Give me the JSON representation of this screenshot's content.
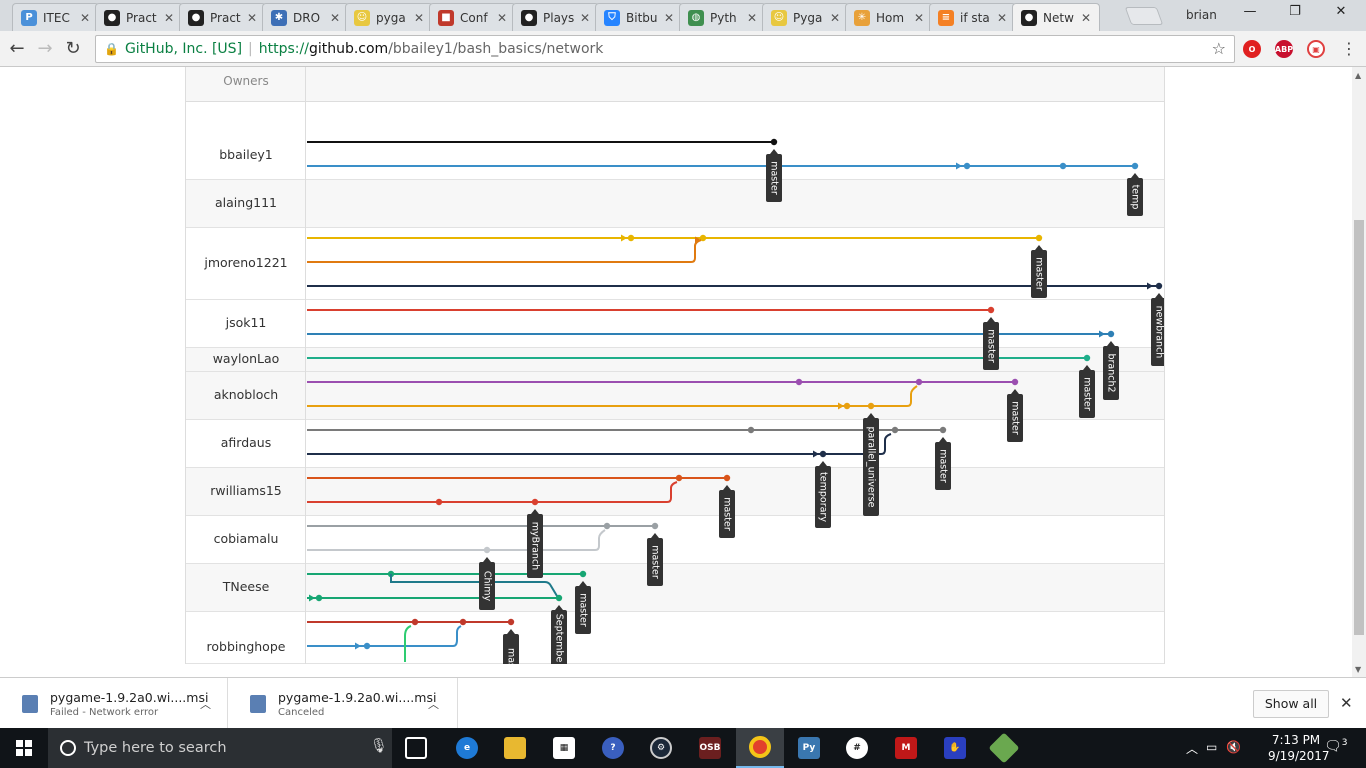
{
  "browser": {
    "tabs": [
      {
        "title": "ITEC",
        "icon": "p-icon",
        "color": "#4a90d9",
        "letter": "P"
      },
      {
        "title": "Pract",
        "icon": "github-icon",
        "color": "#222222",
        "letter": "●"
      },
      {
        "title": "Pract",
        "icon": "github-icon",
        "color": "#222222",
        "letter": "●"
      },
      {
        "title": "DRO",
        "icon": "dropbox-icon",
        "color": "#3d6fb6",
        "letter": "✱"
      },
      {
        "title": "pyga",
        "icon": "pygame-icon",
        "color": "#e8c840",
        "letter": "☺"
      },
      {
        "title": "Conf",
        "icon": "cube-icon",
        "color": "#c0392b",
        "letter": "■"
      },
      {
        "title": "Plays",
        "icon": "github-icon",
        "color": "#222222",
        "letter": "●"
      },
      {
        "title": "Bitbu",
        "icon": "bitbucket-icon",
        "color": "#2684ff",
        "letter": "⛉"
      },
      {
        "title": "Pyth",
        "icon": "globe-icon",
        "color": "#3f8f4f",
        "letter": "◍"
      },
      {
        "title": "Pyga",
        "icon": "pygame-icon",
        "color": "#e8c840",
        "letter": "☺"
      },
      {
        "title": "Hom",
        "icon": "asterisk-icon",
        "color": "#e8a13a",
        "letter": "✳"
      },
      {
        "title": "if sta",
        "icon": "stackoverflow-icon",
        "color": "#f48024",
        "letter": "≡"
      },
      {
        "title": "Netw",
        "icon": "github-icon",
        "color": "#222222",
        "letter": "●"
      }
    ],
    "active_tab": 12,
    "user": "brian",
    "security_label": "GitHub, Inc. [US]",
    "url_prefix": "https://",
    "url_host": "github.com",
    "url_path": "/bbailey1/bash_basics/network"
  },
  "network": {
    "owners_header": "Owners",
    "owners": [
      "bbailey1",
      "alaing111",
      "jmoreno1221",
      "jsok11",
      "waylonLao",
      "aknobloch",
      "afirdaus",
      "rwilliams15",
      "cobiamalu",
      "TNeese",
      "robbinghope"
    ],
    "branch_labels": [
      "master",
      "temp",
      "master",
      "newbranch",
      "master",
      "branch2",
      "master",
      "master",
      "parallel_universe",
      "master",
      "temporary",
      "master",
      "myBranch",
      "master",
      "Chimy",
      "master",
      "Septembe",
      "mas"
    ]
  },
  "downloads": [
    {
      "name": "pygame-1.9.2a0.wi....msi",
      "status": "Failed - Network error"
    },
    {
      "name": "pygame-1.9.2a0.wi....msi",
      "status": "Canceled"
    }
  ],
  "downloads_show_all": "Show all",
  "taskbar": {
    "search_placeholder": "Type here to search",
    "time": "7:13 PM",
    "date": "9/19/2017",
    "notifications": "3"
  }
}
